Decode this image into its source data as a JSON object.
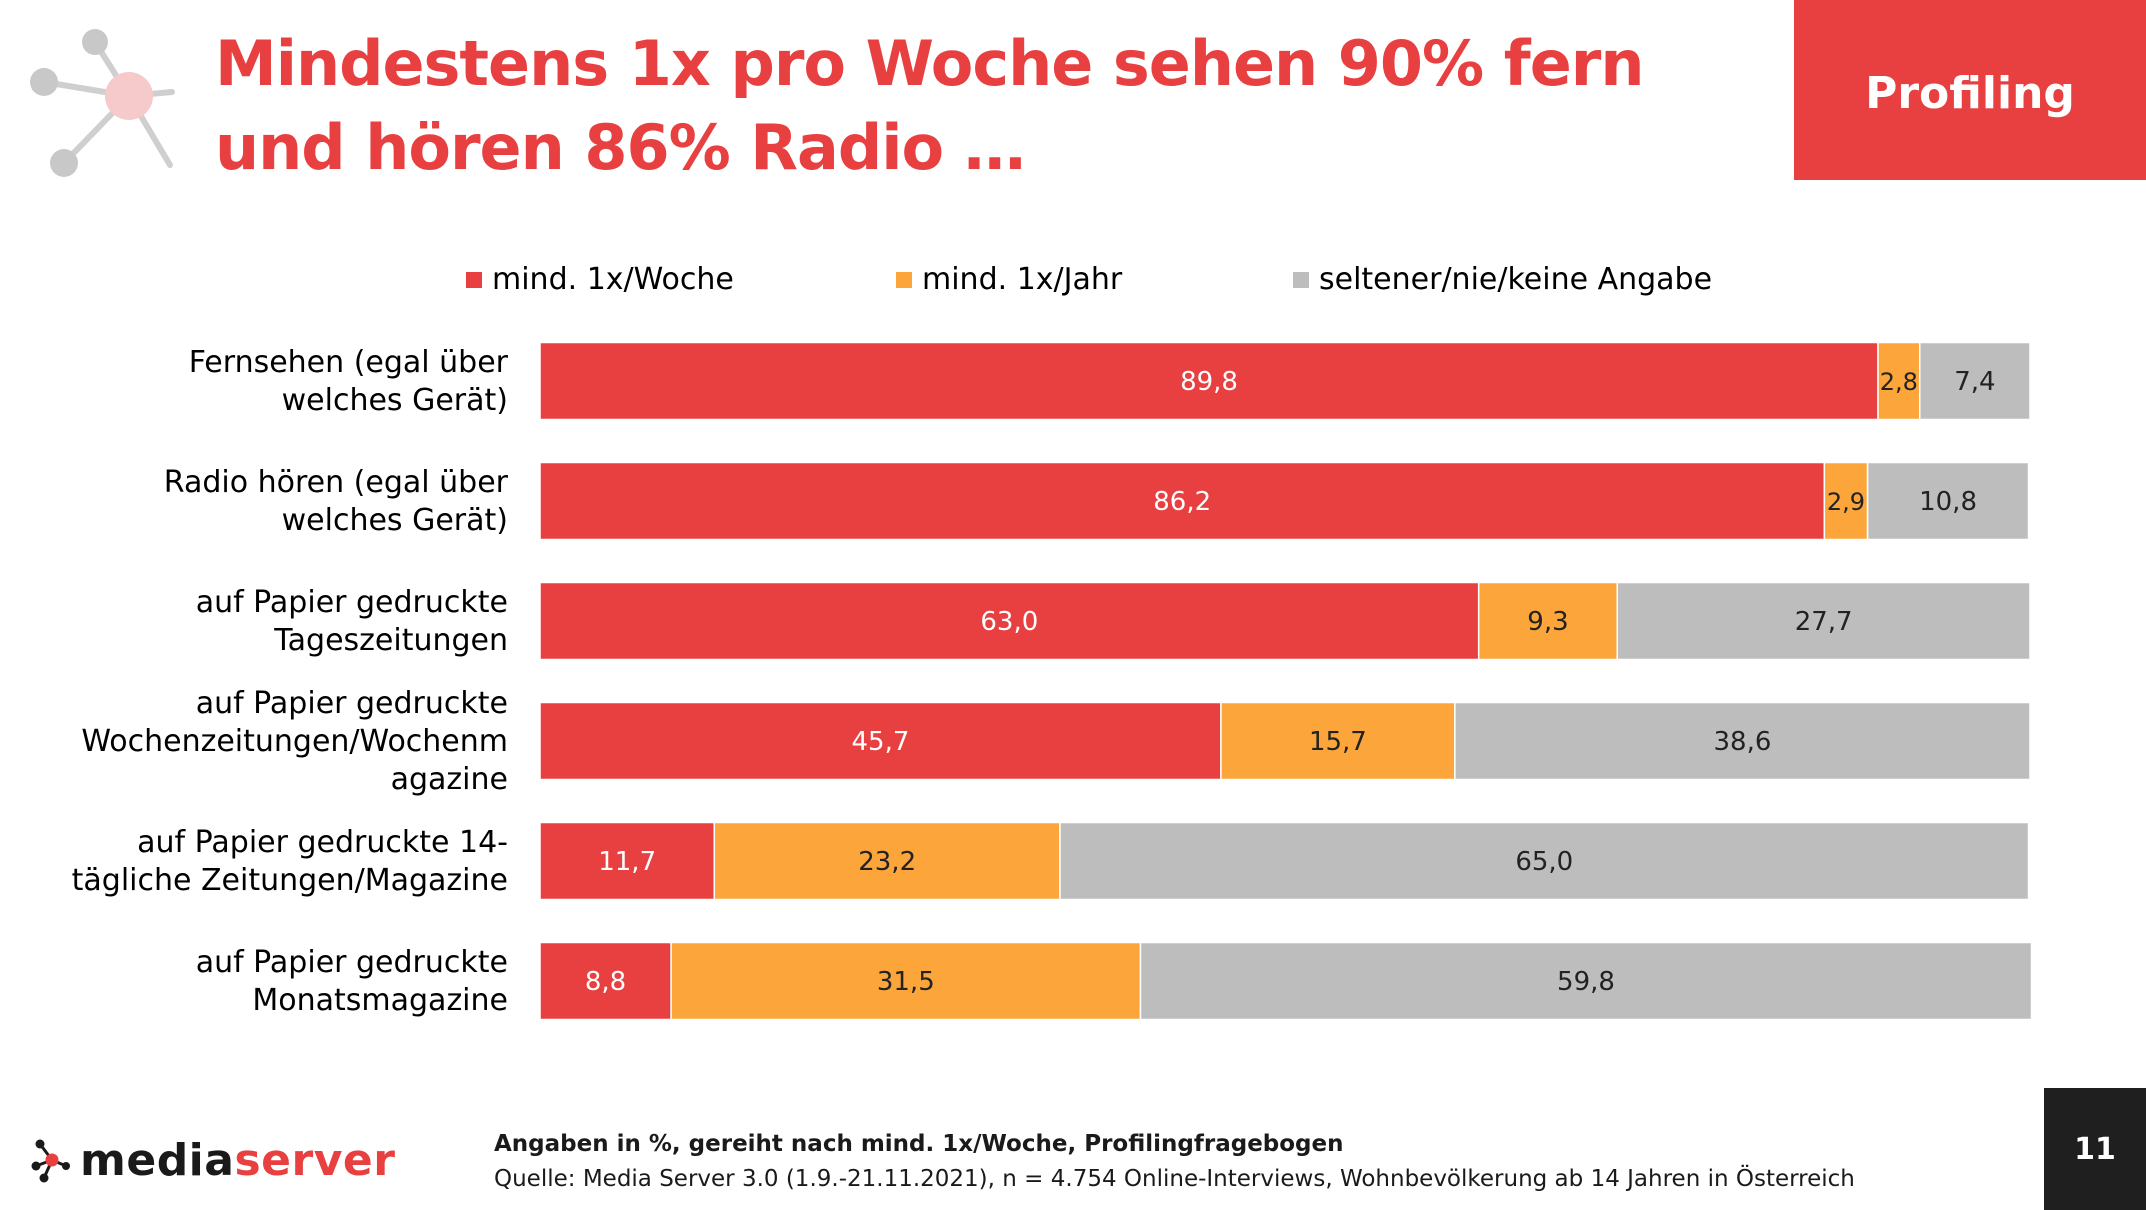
{
  "slide": {
    "title_line1": "Mindestens 1x pro Woche sehen 90% fern",
    "title_line2": "und hören 86% Radio …",
    "badge": "Profiling",
    "page_number": "11"
  },
  "logo": {
    "text_part1": "media",
    "text_part2": "server",
    "color_dark": "#1a1a1a",
    "color_accent": "#e84040"
  },
  "footer": {
    "note": "Angaben in %, gereiht nach mind. 1x/Woche, Profilingfragebogen",
    "source": "Quelle: Media Server 3.0 (1.9.-21.11.2021), n = 4.754 Online-Interviews, Wohnbevölkerung ab 14 Jahren in Österreich"
  },
  "colors": {
    "accent": "#e84040",
    "orange": "#fba53a",
    "grey": "#bdbdbd"
  },
  "chart_data": {
    "type": "bar",
    "orientation": "horizontal",
    "stacked": true,
    "xlim": [
      0,
      100
    ],
    "grid": false,
    "legend_position": "top",
    "categories": [
      [
        "Fernsehen (egal über",
        "welches Gerät)"
      ],
      [
        "Radio hören (egal über",
        "welches Gerät)"
      ],
      [
        "auf Papier gedruckte",
        "Tageszeitungen"
      ],
      [
        "auf Papier gedruckte",
        "Wochenzeitungen/Wochenm",
        "agazine"
      ],
      [
        "auf Papier gedruckte 14-",
        "tägliche Zeitungen/Magazine"
      ],
      [
        "auf Papier gedruckte",
        "Monatsmagazine"
      ]
    ],
    "series": [
      {
        "name": "mind. 1x/Woche",
        "color": "#e84040",
        "label_color": "#ffffff",
        "values": [
          89.8,
          86.2,
          63.0,
          45.7,
          11.7,
          8.8
        ],
        "labels": [
          "89,8",
          "86,2",
          "63,0",
          "45,7",
          "11,7",
          "8,8"
        ]
      },
      {
        "name": "mind. 1x/Jahr",
        "color": "#fba53a",
        "label_color": "#222222",
        "values": [
          2.8,
          2.9,
          9.3,
          15.7,
          23.2,
          31.5
        ],
        "labels": [
          "2,8",
          "2,9",
          "9,3",
          "15,7",
          "23,2",
          "31,5"
        ]
      },
      {
        "name": "seltener/nie/keine Angabe",
        "color": "#bdbdbd",
        "label_color": "#222222",
        "values": [
          7.4,
          10.8,
          27.7,
          38.6,
          65.0,
          59.8
        ],
        "labels": [
          "7,4",
          "10,8",
          "27,7",
          "38,6",
          "65,0",
          "59,8"
        ]
      }
    ]
  }
}
